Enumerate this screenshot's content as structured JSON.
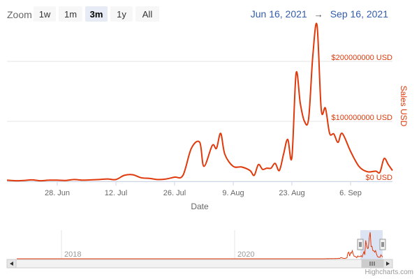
{
  "toolbar": {
    "zoom_label": "Zoom",
    "buttons": [
      "1w",
      "1m",
      "3m",
      "1y",
      "All"
    ],
    "selected": "3m",
    "range_from": "Jun 16, 2021",
    "range_arrow": "→",
    "range_to": "Sep 16, 2021"
  },
  "credits": "Highcharts.com",
  "colors": {
    "series": "#e0390b",
    "accent_text": "#335cad",
    "grid": "#e6e6e6",
    "navigator_mask": "#c5d0ea"
  },
  "chart_data": {
    "type": "line",
    "xlabel": "Date",
    "ylabel": "Sales USD",
    "y_axis_side": "right",
    "ylim": [
      0,
      250000000
    ],
    "y_ticks": [
      0,
      100000000,
      200000000
    ],
    "y_tick_labels": [
      "$0 USD",
      "$100000000 USD",
      "$200000000 USD"
    ],
    "x_range": [
      "2021-06-16",
      "2021-09-16"
    ],
    "x_ticks": [
      "2021-06-28",
      "2021-07-12",
      "2021-07-26",
      "2021-08-09",
      "2021-08-23",
      "2021-09-06"
    ],
    "x_tick_labels": [
      "28. Jun",
      "12. Jul",
      "26. Jul",
      "9. Aug",
      "23. Aug",
      "6. Sep"
    ],
    "grid": true,
    "series": [
      {
        "x": [
          "2021-06-16",
          "2021-06-18",
          "2021-06-20",
          "2021-06-22",
          "2021-06-24",
          "2021-06-26",
          "2021-06-28",
          "2021-06-30",
          "2021-07-02",
          "2021-07-04",
          "2021-07-06",
          "2021-07-08",
          "2021-07-10",
          "2021-07-12",
          "2021-07-14",
          "2021-07-16",
          "2021-07-18",
          "2021-07-20",
          "2021-07-22",
          "2021-07-24",
          "2021-07-26",
          "2021-07-28",
          "2021-07-30",
          "2021-08-01",
          "2021-08-02",
          "2021-08-04",
          "2021-08-05",
          "2021-08-06",
          "2021-08-07",
          "2021-08-09",
          "2021-08-11",
          "2021-08-13",
          "2021-08-14",
          "2021-08-15",
          "2021-08-16",
          "2021-08-17",
          "2021-08-18",
          "2021-08-19",
          "2021-08-20",
          "2021-08-21",
          "2021-08-22",
          "2021-08-23",
          "2021-08-24",
          "2021-08-25",
          "2021-08-26",
          "2021-08-27",
          "2021-08-28",
          "2021-08-29",
          "2021-08-30",
          "2021-08-31",
          "2021-09-01",
          "2021-09-02",
          "2021-09-03",
          "2021-09-04",
          "2021-09-06",
          "2021-09-08",
          "2021-09-10",
          "2021-09-12",
          "2021-09-13",
          "2021-09-14",
          "2021-09-15",
          "2021-09-16"
        ],
        "values": [
          2000000,
          1000000,
          1500000,
          2500000,
          1000000,
          2000000,
          2000000,
          1500000,
          3000000,
          2000000,
          2500000,
          3000000,
          4000000,
          3000000,
          10000000,
          11000000,
          6000000,
          5000000,
          3000000,
          4000000,
          7000000,
          10000000,
          55000000,
          65000000,
          25000000,
          60000000,
          55000000,
          80000000,
          45000000,
          25000000,
          24000000,
          18000000,
          10000000,
          28000000,
          20000000,
          22000000,
          22000000,
          30000000,
          18000000,
          45000000,
          70000000,
          40000000,
          180000000,
          130000000,
          100000000,
          105000000,
          210000000,
          260000000,
          120000000,
          122000000,
          80000000,
          79000000,
          65000000,
          80000000,
          50000000,
          25000000,
          16000000,
          17000000,
          15000000,
          38000000,
          28000000,
          18000000
        ]
      }
    ]
  },
  "navigator": {
    "labels": [
      "2018",
      "2020"
    ],
    "scroll_left_icon": "triangle-left-icon",
    "scroll_right_icon": "triangle-right-icon",
    "grip_icon": "three-bars-grip-icon",
    "handle_icon": "navigator-handle-icon"
  }
}
